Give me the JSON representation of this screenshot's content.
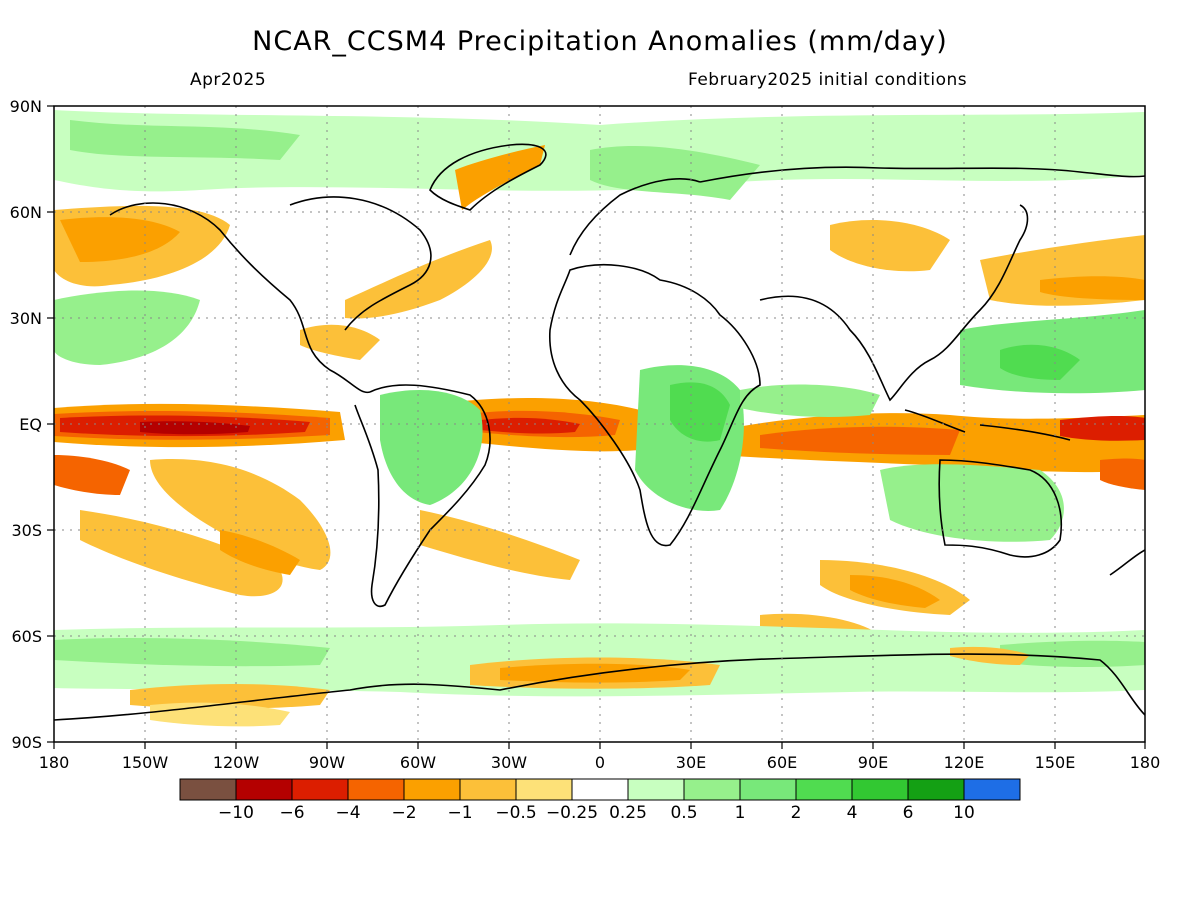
{
  "header": {
    "title": "NCAR_CCSM4 Precipitation Anomalies (mm/day)",
    "valid_month": "Apr2025",
    "init": "February2025 initial conditions"
  },
  "axes": {
    "lat_labels": [
      "90N",
      "60N",
      "30N",
      "EQ",
      "30S",
      "60S",
      "90S"
    ],
    "lon_labels": [
      "180",
      "150W",
      "120W",
      "90W",
      "60W",
      "30W",
      "0",
      "30E",
      "60E",
      "90E",
      "120E",
      "150E",
      "180"
    ]
  },
  "colorbar": {
    "colors": [
      "#7a5040",
      "#b40000",
      "#dc1e00",
      "#f56400",
      "#fba000",
      "#fcc039",
      "#fde178",
      "#ffffff",
      "#c8ffc0",
      "#96f08c",
      "#78e87a",
      "#50dc50",
      "#32c832",
      "#14a014",
      "#1e6ee6"
    ],
    "labels": [
      "−10",
      "−6",
      "−4",
      "−2",
      "−1",
      "−0.5",
      "−0.25",
      "0.25",
      "0.5",
      "1",
      "2",
      "4",
      "6",
      "10"
    ]
  }
}
